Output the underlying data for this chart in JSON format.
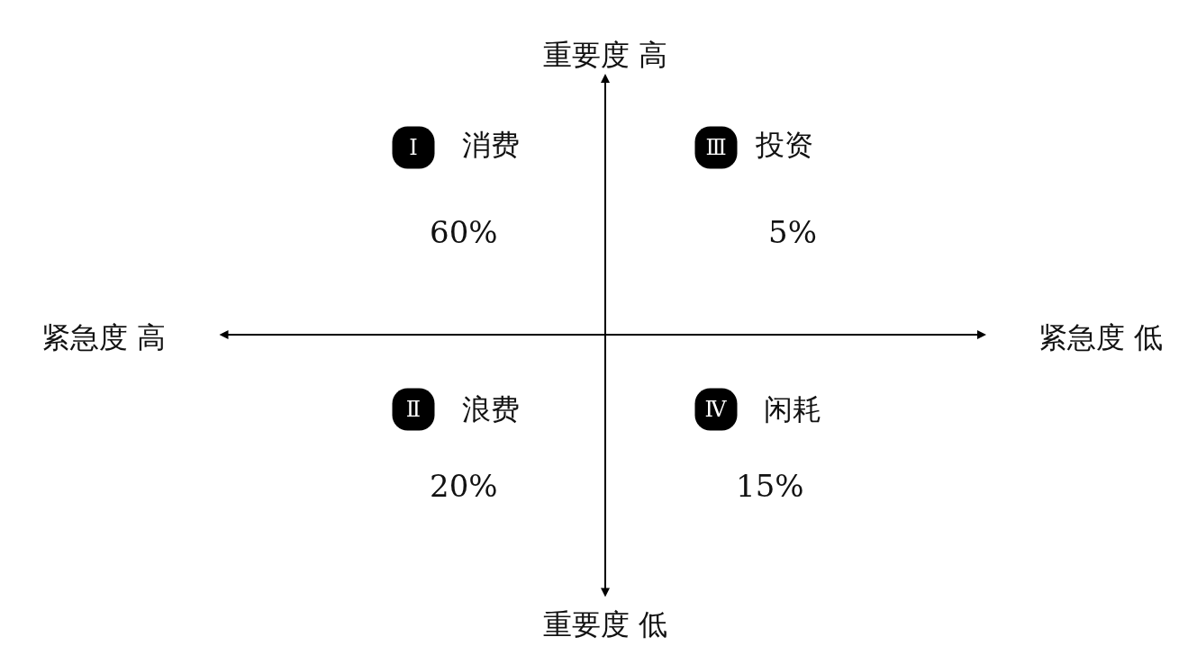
{
  "chart_data": {
    "type": "other",
    "categories": [
      "消费",
      "投资",
      "浪费",
      "闲耗"
    ],
    "values": [
      60,
      5,
      20,
      15
    ],
    "value_labels": [
      "60%",
      "5%",
      "20%",
      "15%"
    ],
    "annotations": [
      "重要度 高",
      "重要度 低",
      "紧急度 高",
      "紧急度 低",
      "Ⅰ",
      "Ⅲ",
      "Ⅱ",
      "Ⅳ"
    ]
  }
}
